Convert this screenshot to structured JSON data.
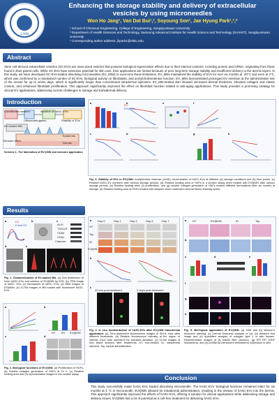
{
  "header": {
    "logo_text": "SUNGKYUNKWAN UNIVERSITY",
    "logo_year": "1398",
    "title_line1": "Enhancing the storage stability and delivery of extracellular",
    "title_line2": "vesicles by using microneedles",
    "authors": "Won Ho Jang¹, Van Dat Bui¹,², Soyoung Son¹, Jae Hyung Park¹,²,*",
    "affiliations": [
      "¹ School of Chemical Engineering, College of Engineering, Sungkyunkwan University",
      "² Department of Health Sciences and Technology, Samsung Advanced Institute for Health Science and Technology (SAIHST), Sungkyunkwan University",
      "* Corresponding author address: jhpark1@skku.edu"
    ]
  },
  "sections": {
    "abstract": "Abstract",
    "introduction": "Introduction",
    "results": "Results",
    "conclusion": "Conclusion"
  },
  "abstract_text": "Stem cell-derived extracellular vesicles (SC-EVs) are nano-sized vesicles that possess biological regenerative effects due to their internal contents, including protein and mRNA, originating from those found in their parent cells. While SC-EVs have extensive potential for skin care, their applications are limited because of poor long-term storage stability and insufficient delivery to the dermis layers. In this study, we have developed SC-EVs-loaded dissolving microneedles (EV_MNs) to overcome these limitations. EV_MNs maintained the stability of EVs for over six months at -20°C and even at 4°C, which was confirmed by a maintained number of SC-EVs, biological activity on fibroblasts, and acetylcholinesterase function. EV_MNs demonstrated prolonged EV retention at the administration site of the mouse for up to seven days, which is significantly longer than conventional intradermal injections. EV_MN-treated skin showed increased dermal thickness, elevated collagen and elastin content, and enhanced fibroblast proliferation. This approach significantly improved the effect on fibroblast function related to anti-aging applications. This study provides a promising strategy for clinical EV applications, addressing current challenges in storage and transdermal delivery.",
  "intro": {
    "scheme_caption_bold": "Scheme 1. The fabrication of EV@MN and skincare application",
    "labels": [
      "Conditioned medium",
      "Isolation of hASC-EVs",
      "Stability of EVs",
      "Skincare effect",
      "Ultracentrifugation",
      "EV-loaded MN",
      "Dermis",
      "Epidermis"
    ]
  },
  "fig1": {
    "caption_bold": "Fig. 1. Characterization of EV-loaded MN.",
    "caption": "(a) Size distribution of fresh hASC-EVs and solution of EV@MN by NTA. (b) TEM image of hASC- EVs. (c) Biomarkers of hASC- EVs. (d) SEM images of EV@MN. (e) CLSM images of MN loaded with fluorescent hASC- EVs.",
    "markers": [
      "ALIX",
      "TSG101",
      "CD63",
      "CD81",
      "Calnexin"
    ],
    "panel_labels": [
      "a",
      "b",
      "c",
      "d",
      "e"
    ],
    "legend": [
      "EV",
      "Fresh EV"
    ]
  },
  "fig2": {
    "caption_bold": "Fig. 2. Biological functions of EV@MN.",
    "caption": "(a) Proliferation of HDFs. (b) Soluble collagen generation of HDFs at 24 h. (c) Relative healing area and (d) representative images in the scratch assay.",
    "panel_labels": [
      "a",
      "b",
      "c",
      "d"
    ],
    "groups": [
      "NT",
      "EV",
      "EV@MN"
    ]
  },
  "fig3": {
    "caption_bold": "Fig. 3. Stability of EVs in EV@MN.",
    "caption": "Acetylcholine esterase (AchE) concentration of hASC-EVs at different (a) storage conditions and (b) time points. (c) Relative hASC-EV numbers after various storage periods. (d) Relative healing area of HDFs in a scratch assay when treated with EV@MN after various storage periods. (e) Relative healing area. (f) proliferation, and (g) soluble collagen generation of HDFs treated different formulations after six months of storage. (h) Relative healing area of HDFs treated with samples which underwent several freeze-thawing cycles.",
    "panel_labels": [
      "a",
      "b",
      "c",
      "d",
      "e",
      "f",
      "g",
      "h"
    ],
    "legend": [
      "EV",
      "EV@MN"
    ]
  },
  "fig4": {
    "caption_bold": "Fig. 4. In vivo biodistribution of hASC-EVs after EV@MN transdermal application.",
    "caption": "(a) Time-dependent fluorescence images of SKH1 mice after different treatments. (b) Relative fluorescence intensity at the region of interest. Error bars represent the standard deviation. (c) CLSM images of skin tissue sections after treatments. NT, non-treated; ID, intradermal injection; Top, topical administration.",
    "days": [
      "Day 0",
      "Day 1",
      "Day 3",
      "Day 5",
      "Day 7"
    ],
    "rows": [
      "NT",
      "Top",
      "ID",
      "EV@MN"
    ],
    "time_labels": [
      "20 min post treatment",
      "2 days post treatment"
    ],
    "panel_labels": [
      "a",
      "b",
      "c"
    ]
  },
  "fig5": {
    "caption_bold": "Fig. 5. BioTopical application of EV@MN.",
    "caption": "(a) H&E and (b) Masson's trichrome staining. (c) Dermal thickness analysis of (a). (d) Western blot image and (e) quantified analysis of collagen type 1 in skin tissues. Representative images of (f) elastin fiber (armour), (g) EPI-TR7 (HDF biomarkers), and (h) p16INK4a (senescent biomarkers) expression in skin.",
    "columns": [
      "NT",
      "EV@MN",
      "ID",
      "Top"
    ],
    "panel_labels": [
      "a",
      "b",
      "c",
      "d",
      "e",
      "f",
      "g",
      "h"
    ]
  },
  "conclusion_text": "This study successfully made hASC-EVs loaded dissolving microneedle. The hASC-EVs' biological functions remained intact for six months at 4 °C in microneedle. EV@MN allowed for intradermal administration, resulting in the release of hASC-EVs into the dermis. This approach significantly improved the effects of hASC-EVs, offering a solution for clinical applications while addressing storage and delivery issues. EV@MN has a lot of potential as a cell-free treatment for delivering hASC-EVs.",
  "colors": {
    "header": "#2e5fa0",
    "section": "#1f4a8a",
    "accent_red": "#d8322e",
    "accent_blue": "#2a5cc9",
    "accent_green": "#3b9b3b"
  }
}
